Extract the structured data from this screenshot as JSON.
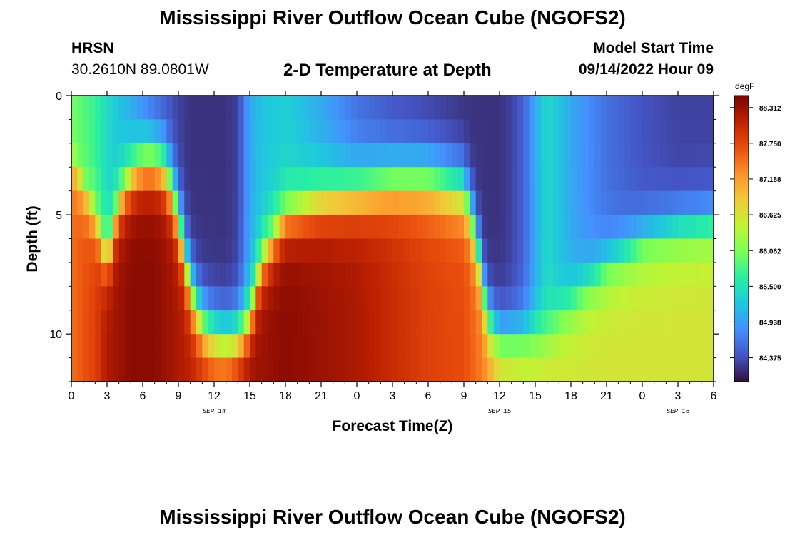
{
  "page": {
    "title": "Mississippi River Outflow Ocean Cube (NGOFS2)",
    "title_repeat": "Mississippi River Outflow Ocean Cube (NGOFS2)",
    "station_name": "HRSN",
    "station_coords": "30.2610N  89.0801W",
    "plot_title": "2-D Temperature at Depth",
    "model_start_label": "Model Start Time",
    "model_start_value": "09/14/2022 Hour 09"
  },
  "colors": {
    "ramp": [
      "#30123b",
      "#4454c4",
      "#4490fe",
      "#1fc8de",
      "#29efa2",
      "#7dff56",
      "#c1f334",
      "#f1ca3a",
      "#fe922a",
      "#ea4e0d",
      "#be2102",
      "#7a0403"
    ]
  },
  "chart_data": {
    "type": "heatmap",
    "title": "2-D Temperature at Depth",
    "xlabel": "Forecast Time(Z)",
    "ylabel": "Depth (ft)",
    "x_ticks": [
      "0",
      "3",
      "6",
      "9",
      "12",
      "15",
      "18",
      "21",
      "0",
      "3",
      "6",
      "9",
      "12",
      "15",
      "18",
      "21",
      "0",
      "3",
      "6"
    ],
    "x_range_hours": [
      0,
      54
    ],
    "x_date_labels": [
      {
        "label": "SEP 14",
        "at_hour": 12
      },
      {
        "label": "SEP 15",
        "at_hour": 36
      },
      {
        "label": "SEP 16",
        "at_hour": 51
      }
    ],
    "y_ticks": [
      "0",
      "5",
      "10"
    ],
    "y_range_ft": [
      0,
      12
    ],
    "colorbar": {
      "unit": "degF",
      "ticks": [
        "88.312",
        "87.750",
        "87.188",
        "86.625",
        "86.062",
        "85.500",
        "84.938",
        "84.375"
      ],
      "range": [
        84.0,
        88.5
      ]
    },
    "levels_ft": [
      0.5,
      1.5,
      2.5,
      3.5,
      4.5,
      5.5,
      6.5,
      7.5,
      8.5,
      9.5,
      10.5,
      11.5
    ],
    "profile": {
      "hours": [
        0,
        2,
        3,
        4,
        5,
        6,
        7,
        8,
        9,
        10,
        11,
        12,
        13,
        14,
        15,
        16,
        18,
        21,
        24,
        27,
        30,
        33,
        34,
        35,
        36,
        37,
        38,
        39,
        40,
        42,
        45,
        48,
        51,
        54
      ],
      "iso86_ft": [
        2.0,
        4.5,
        6.5,
        4.0,
        3.0,
        2.5,
        2.5,
        3.0,
        5.0,
        8.0,
        9.5,
        10.0,
        10.2,
        10.0,
        9.0,
        6.5,
        4.5,
        4.0,
        3.8,
        3.5,
        3.5,
        4.0,
        6.0,
        9.5,
        10.5,
        10.5,
        10.5,
        10.3,
        10.0,
        9.0,
        7.5,
        6.5,
        6.0,
        5.8
      ],
      "bottom_f": [
        87.5,
        87.8,
        88.2,
        88.3,
        88.4,
        88.4,
        88.4,
        88.3,
        88.2,
        88.1,
        88.0,
        87.9,
        88.0,
        88.2,
        88.3,
        88.3,
        88.4,
        88.3,
        88.2,
        88.0,
        87.8,
        87.7,
        87.5,
        87.3,
        87.0,
        86.9,
        86.8,
        86.7,
        86.7,
        86.6,
        86.6,
        86.6,
        86.6,
        86.6
      ],
      "surface_f": [
        86.0,
        85.7,
        85.4,
        85.2,
        85.0,
        84.7,
        84.5,
        84.4,
        84.3,
        84.2,
        84.2,
        84.2,
        84.2,
        84.3,
        85.0,
        85.2,
        85.3,
        85.0,
        84.6,
        84.4,
        84.3,
        84.2,
        84.2,
        84.2,
        84.2,
        84.3,
        84.5,
        85.0,
        85.4,
        85.0,
        84.6,
        84.4,
        84.3,
        84.3
      ]
    }
  }
}
